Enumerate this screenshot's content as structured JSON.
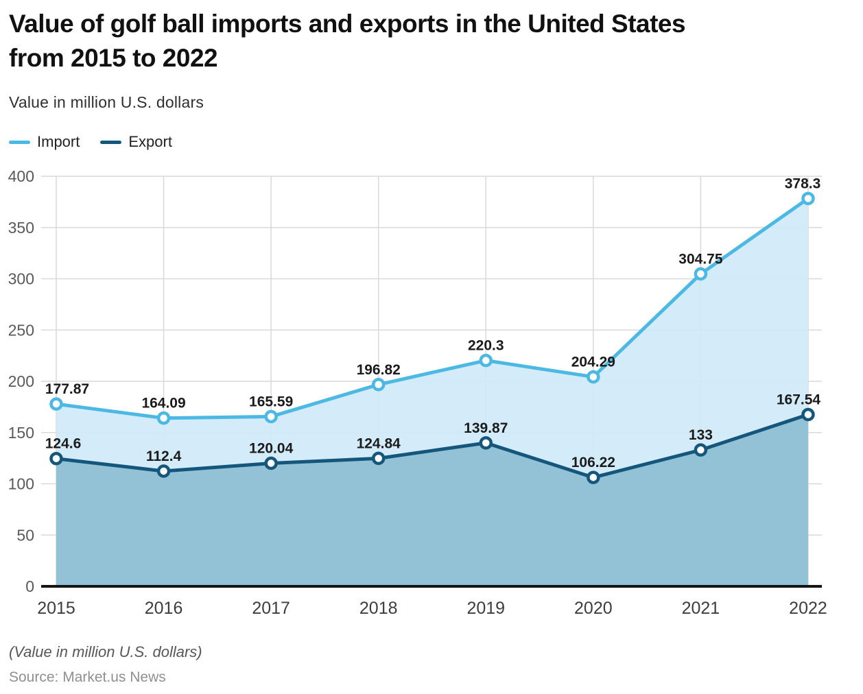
{
  "header": {
    "title_line1": "Value of golf ball imports and exports in the United States",
    "title_line2": "from 2015 to 2022",
    "subtitle": "Value in million U.S. dollars"
  },
  "legend": [
    {
      "label": "Import",
      "color": "#4cb8e4"
    },
    {
      "label": "Export",
      "color": "#15577c"
    }
  ],
  "chart_data": {
    "type": "area",
    "title": "Value of golf ball imports and exports in the United States from 2015 to 2022",
    "xlabel": "",
    "ylabel": "Value in million U.S. dollars",
    "categories": [
      "2015",
      "2016",
      "2017",
      "2018",
      "2019",
      "2020",
      "2021",
      "2022"
    ],
    "series": [
      {
        "name": "Import",
        "color": "#4cb8e4",
        "fill": "#cfeafa",
        "fill_opacity": 0.9,
        "values": [
          177.87,
          164.09,
          165.59,
          196.82,
          220.3,
          204.29,
          304.75,
          378.3
        ]
      },
      {
        "name": "Export",
        "color": "#15577c",
        "fill": "#8fc0d4",
        "fill_opacity": 0.95,
        "values": [
          124.6,
          112.4,
          120.04,
          124.84,
          139.87,
          106.22,
          133,
          167.54
        ]
      }
    ],
    "ylim": [
      0,
      400
    ],
    "yticks": [
      0,
      50,
      100,
      150,
      200,
      250,
      300,
      350,
      400
    ],
    "grid": true,
    "legend_position": "top-left",
    "colors": {
      "gridline": "#d9d9d9",
      "axis_line": "#141414",
      "y_tick_label": "#595959",
      "x_tick_label": "#3d3d3d",
      "value_label": "#1b1b1b",
      "marker_fill": "#ffffff"
    }
  },
  "footer": {
    "note": "(Value in million U.S. dollars)",
    "source": "Source: Market.us News"
  }
}
